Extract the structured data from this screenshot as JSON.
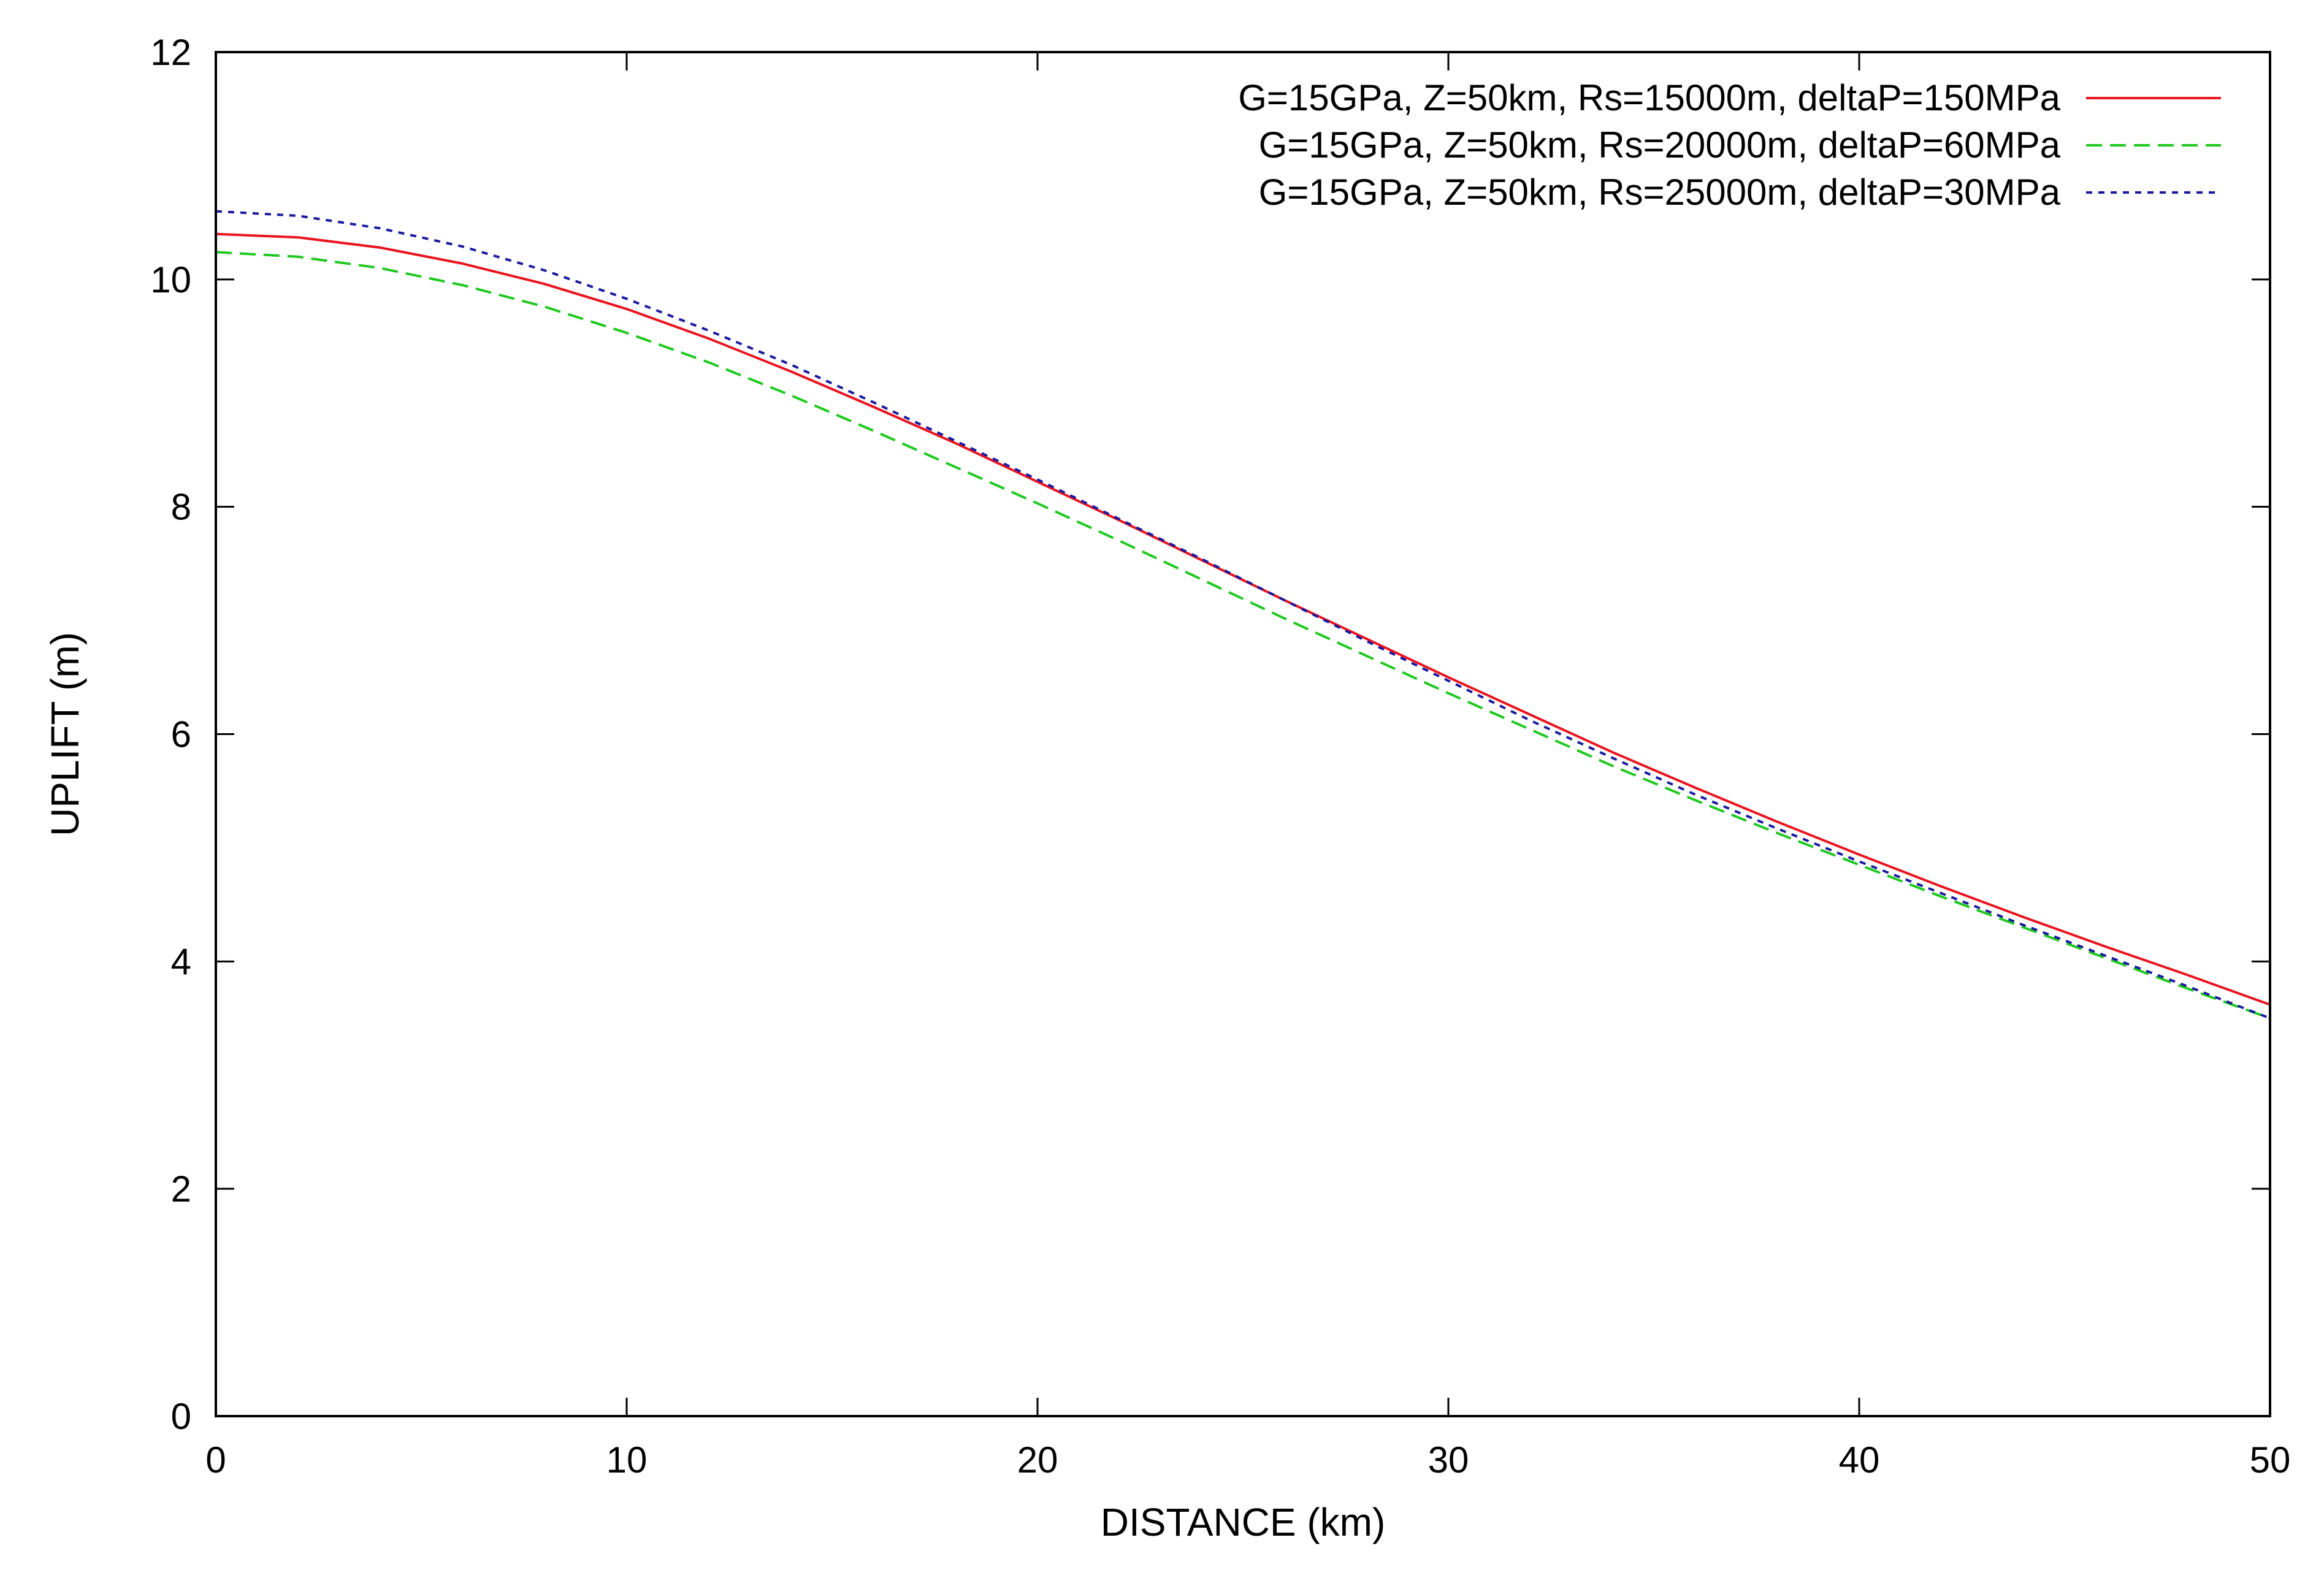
{
  "chart_data": {
    "type": "line",
    "xlabel": "DISTANCE (km)",
    "ylabel": "UPLIFT (m)",
    "xlim": [
      0,
      50
    ],
    "ylim": [
      0,
      12
    ],
    "x_ticks": [
      "0",
      "10",
      "20",
      "30",
      "40",
      "50"
    ],
    "y_ticks": [
      "0",
      "2",
      "4",
      "6",
      "8",
      "10",
      "12"
    ],
    "grid": false,
    "legend_position": "top-right",
    "x": [
      0,
      2,
      4,
      6,
      8,
      10,
      12,
      14,
      16,
      18,
      20,
      22,
      24,
      26,
      28,
      30,
      32,
      34,
      36,
      38,
      40,
      42,
      44,
      46,
      48,
      50
    ],
    "series": [
      {
        "name": "G=15GPa, Z=50km, Rs=15000m, deltaP=150MPa",
        "color": "#e8141e",
        "dash": "solid",
        "values": [
          10.4,
          10.37,
          10.28,
          10.14,
          9.96,
          9.74,
          9.48,
          9.19,
          8.88,
          8.56,
          8.22,
          7.88,
          7.53,
          7.18,
          6.84,
          6.5,
          6.17,
          5.84,
          5.53,
          5.23,
          4.94,
          4.66,
          4.39,
          4.13,
          3.88,
          3.62
        ]
      },
      {
        "name": "G=15GPa, Z=50km, Rs=20000m, deltaP=60MPa",
        "color": "#1ec81e",
        "dash": "dashed",
        "values": [
          10.24,
          10.2,
          10.1,
          9.95,
          9.76,
          9.53,
          9.27,
          8.98,
          8.67,
          8.35,
          8.03,
          7.7,
          7.36,
          7.02,
          6.69,
          6.36,
          6.04,
          5.72,
          5.42,
          5.13,
          4.85,
          4.57,
          4.3,
          4.03,
          3.76,
          3.5
        ]
      },
      {
        "name": "G=15GPa, Z=50km, Rs=25000m, deltaP=30MPa",
        "color": "#1a1aa0",
        "dash": "dotted",
        "values": [
          10.6,
          10.56,
          10.45,
          10.29,
          10.08,
          9.83,
          9.55,
          9.25,
          8.92,
          8.58,
          8.24,
          7.89,
          7.54,
          7.18,
          6.82,
          6.47,
          6.12,
          5.79,
          5.47,
          5.17,
          4.88,
          4.6,
          4.32,
          4.05,
          3.78,
          3.5
        ]
      }
    ]
  }
}
